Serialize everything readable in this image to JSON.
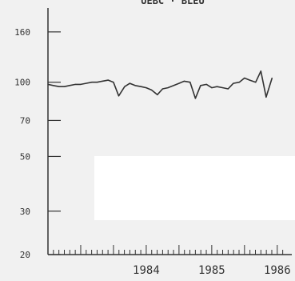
{
  "chart_data": {
    "type": "line",
    "title": "UEBC · BLEU",
    "xlabel": "",
    "ylabel": "",
    "y_scale": "log",
    "ylim": [
      20,
      200
    ],
    "xlim": [
      1983.0,
      1986.6
    ],
    "y_ticks": [
      20,
      30,
      50,
      70,
      100,
      160
    ],
    "x_tick_labels": [
      "1984",
      "1985",
      "1986"
    ],
    "x_tick_values": [
      1984.0,
      1985.0,
      1986.0
    ],
    "grid": false,
    "legend": "none",
    "series": [
      {
        "line_color": "#333333",
        "x": [
          1983.0,
          1983.08,
          1983.17,
          1983.25,
          1983.33,
          1983.42,
          1983.5,
          1983.58,
          1983.67,
          1983.75,
          1983.83,
          1983.92,
          1984.0,
          1984.08,
          1984.17,
          1984.25,
          1984.33,
          1984.42,
          1984.5,
          1984.58,
          1984.67,
          1984.75,
          1984.83,
          1984.92,
          1985.0,
          1985.08,
          1985.17,
          1985.25,
          1985.33,
          1985.42,
          1985.5,
          1985.58,
          1985.67,
          1985.75,
          1985.83,
          1985.92,
          1986.0,
          1986.08,
          1986.17,
          1986.25,
          1986.33,
          1986.42
        ],
        "values": [
          98,
          97,
          96,
          96,
          97,
          98,
          98,
          99,
          100,
          100,
          101,
          102,
          100,
          88,
          96,
          99,
          97,
          96,
          95,
          93,
          89,
          94,
          95,
          97,
          99,
          101,
          100,
          86,
          97,
          98,
          95,
          96,
          95,
          94,
          99,
          100,
          104,
          102,
          100,
          111,
          87,
          104
        ]
      }
    ]
  }
}
